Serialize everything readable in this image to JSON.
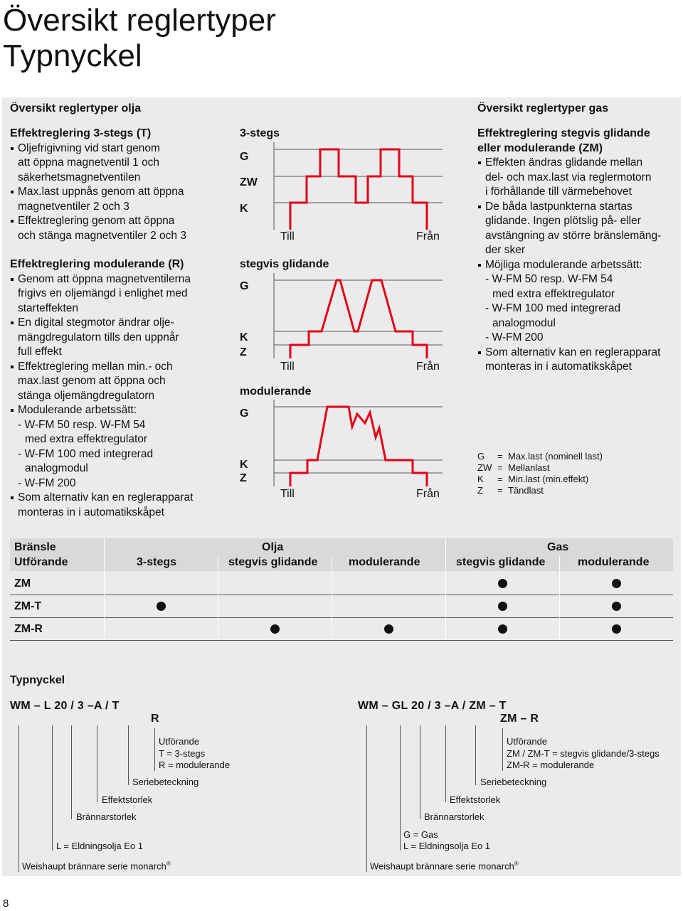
{
  "page": {
    "title_line1": "Översikt reglertyper",
    "title_line2": "Typnyckel",
    "page_number": "8"
  },
  "oil": {
    "heading": "Översikt reglertyper olja",
    "section1": {
      "title": "Effektreglering 3-stegs (T)",
      "lines": [
        {
          "b": true,
          "t": "Oljefrigivning vid start genom"
        },
        {
          "b": false,
          "t": "att öppna magnetventil 1 och"
        },
        {
          "b": false,
          "t": "säkerhetsmagnetventilen"
        },
        {
          "b": true,
          "t": "Max.last uppnås genom att öppna"
        },
        {
          "b": false,
          "t": "magnetventiler 2 och 3"
        },
        {
          "b": true,
          "t": "Effektreglering genom att öppna"
        },
        {
          "b": false,
          "t": "och stänga magnetventiler 2 och 3"
        }
      ]
    },
    "section2": {
      "title": "Effektreglering modulerande (R)",
      "lines": [
        {
          "b": true,
          "t": "Genom att öppna magnetventilerna"
        },
        {
          "b": false,
          "t": "frigivs en oljemängd i enlighet med"
        },
        {
          "b": false,
          "t": "starteffekten"
        },
        {
          "b": true,
          "t": "En digital stegmotor ändrar olje-"
        },
        {
          "b": false,
          "t": "mängdregulatorn tills den uppnår"
        },
        {
          "b": false,
          "t": "full effekt"
        },
        {
          "b": true,
          "t": "Effektreglering mellan min.- och"
        },
        {
          "b": false,
          "t": "max.last genom att öppna och"
        },
        {
          "b": false,
          "t": "stänga oljemängdregulatorn"
        },
        {
          "b": true,
          "t": "Modulerande arbetssätt:"
        },
        {
          "b": false,
          "t": "- W-FM 50 resp. W-FM 54"
        },
        {
          "b": false,
          "i": 2,
          "t": "med extra effektregulator"
        },
        {
          "b": false,
          "t": "- W-FM 100 med integrerad"
        },
        {
          "b": false,
          "i": 2,
          "t": "analogmodul"
        },
        {
          "b": false,
          "t": "- W-FM 200"
        },
        {
          "b": true,
          "t": "Som alternativ kan en reglerapparat"
        },
        {
          "b": false,
          "t": "monteras in i automatikskåpet"
        }
      ]
    }
  },
  "diagrams": {
    "d1": {
      "title": "3-stegs",
      "labels": [
        "G",
        "ZW",
        "K"
      ],
      "till": "Till",
      "fran": "Från"
    },
    "d2": {
      "title": "stegvis glidande",
      "labels": [
        "G",
        "K",
        "Z"
      ],
      "till": "Till",
      "fran": "Från"
    },
    "d3": {
      "title": "modulerande",
      "labels": [
        "G",
        "K",
        "Z"
      ],
      "till": "Till",
      "fran": "Från"
    }
  },
  "gas": {
    "heading": "Översikt reglertyper gas",
    "title_line1": "Effektreglering stegvis glidande",
    "title_line2": "eller modulerande (ZM)",
    "lines": [
      {
        "b": true,
        "t": "Effekten ändras glidande mellan"
      },
      {
        "b": false,
        "t": "del- och max.last via reglermotorn"
      },
      {
        "b": false,
        "t": "i förhållande till värmebehovet"
      },
      {
        "b": true,
        "t": "De båda lastpunkterna startas"
      },
      {
        "b": false,
        "t": "glidande. Ingen plötslig på- eller"
      },
      {
        "b": false,
        "t": "avstängning av större bränslemäng-"
      },
      {
        "b": false,
        "t": "der sker"
      },
      {
        "b": true,
        "t": "Möjliga modulerande arbetssätt:"
      },
      {
        "b": false,
        "t": "- W-FM 50 resp. W-FM 54"
      },
      {
        "b": false,
        "i": 2,
        "t": "med extra effektregulator"
      },
      {
        "b": false,
        "t": "- W-FM 100 med integrerad"
      },
      {
        "b": false,
        "i": 2,
        "t": "analogmodul"
      },
      {
        "b": false,
        "t": "- W-FM 200"
      },
      {
        "b": true,
        "t": "Som alternativ kan en reglerapparat"
      },
      {
        "b": false,
        "t": "monteras in i automatikskåpet"
      }
    ]
  },
  "legend": [
    {
      "k": "G",
      "eq": "=",
      "v": "Max.last (nominell last)"
    },
    {
      "k": "ZW",
      "eq": "=",
      "v": "Mellanlast"
    },
    {
      "k": "K",
      "eq": "=",
      "v": "Min.last (min.effekt)"
    },
    {
      "k": "Z",
      "eq": "=",
      "v": "Tändlast"
    }
  ],
  "matrix": {
    "fuel_label": "Bränsle",
    "design_label": "Utförande",
    "oil_label": "Olja",
    "gas_label": "Gas",
    "columns": [
      "3-stegs",
      "stegvis glidande",
      "modulerande",
      "stegvis glidande",
      "modulerande"
    ],
    "rows": [
      {
        "name": "ZM",
        "marks": [
          false,
          false,
          false,
          true,
          true
        ]
      },
      {
        "name": "ZM-T",
        "marks": [
          true,
          false,
          false,
          true,
          true
        ]
      },
      {
        "name": "ZM-R",
        "marks": [
          false,
          true,
          true,
          true,
          true
        ]
      }
    ]
  },
  "typekey": {
    "heading": "Typnyckel",
    "oil": {
      "code": "WM – L 20 / 3 –A / T",
      "code_r": "R",
      "utforande": [
        "Utförande",
        "T = 3-stegs",
        "R = modulerande"
      ],
      "serie": "Seriebeteckning",
      "effekt": "Effektstorlek",
      "brannar": "Brännarstorlek",
      "fuel": [
        "L = Eldningsolja Eo 1"
      ],
      "series": "Weishaupt brännare serie monarch",
      "reg": "®"
    },
    "gas": {
      "code": "WM – GL 20 / 3 –A / ZM – T",
      "code_r": "ZM – R",
      "utforande": [
        "Utförande",
        "ZM / ZM-T = stegvis glidande/3-stegs",
        "ZM-R = modulerande"
      ],
      "serie": "Seriebeteckning",
      "effekt": "Effektstorlek",
      "brannar": "Brännarstorlek",
      "fuel": [
        "G = Gas",
        "L = Eldningsolja Eo 1"
      ],
      "series": "Weishaupt brännare serie monarch",
      "reg": "®"
    }
  },
  "colors": {
    "panel": "#ebebeb",
    "red": "#e2001a",
    "header_bg": "#d9d9d9"
  }
}
